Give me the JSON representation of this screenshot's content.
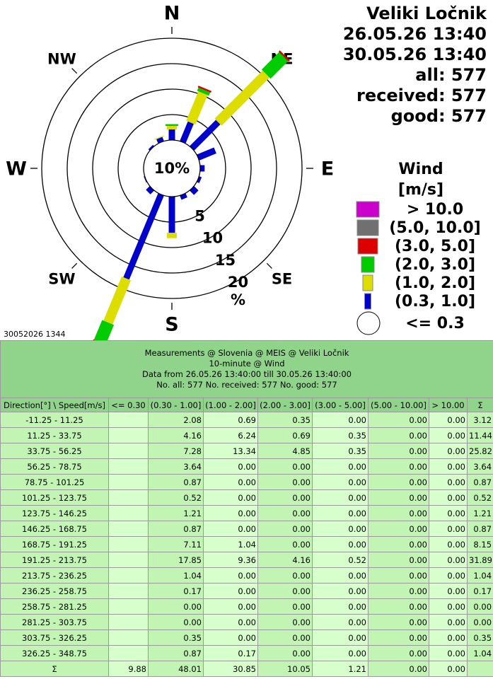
{
  "chart_data": {
    "type": "windrose",
    "station": "Veliki Ločnik",
    "date_from": "26.05.26 13:40",
    "date_to": "30.05.26 13:40",
    "count_all": "all: 577",
    "count_received": "received: 577",
    "count_good": "good: 577",
    "legend_title": "Wind",
    "legend_unit": "[m/s]",
    "direction_labels": [
      "N",
      "NE",
      "E",
      "SE",
      "S",
      "SW",
      "W",
      "NW"
    ],
    "rlim": [
      0,
      20
    ],
    "rticks": [
      5,
      10,
      15,
      20
    ],
    "r_unit": "%",
    "calm": {
      "name": "<= 0.3",
      "color": "#ffffff",
      "value": 9.88,
      "value_label": "10%"
    },
    "series": [
      {
        "name": "(0.3, 1.0]",
        "color": "#0000cc",
        "values": [
          2.08,
          4.16,
          7.28,
          3.64,
          0.87,
          0.52,
          1.21,
          0.87,
          7.11,
          17.85,
          1.04,
          0.17,
          0.0,
          0.0,
          0.35,
          0.87
        ]
      },
      {
        "name": "(1.0, 2.0]",
        "color": "#dddd00",
        "values": [
          0.69,
          6.24,
          13.34,
          0.0,
          0.0,
          0.0,
          0.0,
          0.0,
          1.04,
          9.36,
          0.0,
          0.0,
          0.0,
          0.0,
          0.0,
          0.17
        ]
      },
      {
        "name": "(2.0, 3.0]",
        "color": "#00cc00",
        "values": [
          0.35,
          0.69,
          4.85,
          0.0,
          0.0,
          0.0,
          0.0,
          0.0,
          0.0,
          4.16,
          0.0,
          0.0,
          0.0,
          0.0,
          0.0,
          0.0
        ]
      },
      {
        "name": "(3.0, 5.0]",
        "color": "#dd0000",
        "values": [
          0.0,
          0.35,
          0.35,
          0.0,
          0.0,
          0.0,
          0.0,
          0.0,
          0.0,
          0.52,
          0.0,
          0.0,
          0.0,
          0.0,
          0.0,
          0.0
        ]
      },
      {
        "name": "(5.0, 10.0]",
        "color": "#707070",
        "values": [
          0.0,
          0.0,
          0.0,
          0.0,
          0.0,
          0.0,
          0.0,
          0.0,
          0.0,
          0.0,
          0.0,
          0.0,
          0.0,
          0.0,
          0.0,
          0.0
        ]
      },
      {
        "name": "> 10.0",
        "color": "#cc00cc",
        "values": [
          0.0,
          0.0,
          0.0,
          0.0,
          0.0,
          0.0,
          0.0,
          0.0,
          0.0,
          0.0,
          0.0,
          0.0,
          0.0,
          0.0,
          0.0,
          0.0
        ]
      }
    ],
    "footnote": "30052026 1344"
  },
  "table": {
    "header_lines": [
      "Measurements @ Slovenia @ MEIS @ Veliki Ločnik",
      "10-minute @ Wind",
      "Data from 26.05.26 13:40:00 till 30.05.26 13:40:00",
      "No. all: 577   No. received: 577   No. good: 577"
    ],
    "columns": [
      "Direction[°] \\ Speed[m/s]",
      "<= 0.30",
      "(0.30 - 1.00]",
      "(1.00 - 2.00]",
      "(2.00 - 3.00]",
      "(3.00 - 5.00]",
      "(5.00 - 10.00]",
      "> 10.00",
      "Σ"
    ],
    "rows": [
      [
        "-11.25 - 11.25",
        null,
        "2.08",
        "0.69",
        "0.35",
        "0.00",
        "0.00",
        "0.00",
        "3.12"
      ],
      [
        "11.25 - 33.75",
        null,
        "4.16",
        "6.24",
        "0.69",
        "0.35",
        "0.00",
        "0.00",
        "11.44"
      ],
      [
        "33.75 - 56.25",
        null,
        "7.28",
        "13.34",
        "4.85",
        "0.35",
        "0.00",
        "0.00",
        "25.82"
      ],
      [
        "56.25 - 78.75",
        null,
        "3.64",
        "0.00",
        "0.00",
        "0.00",
        "0.00",
        "0.00",
        "3.64"
      ],
      [
        "78.75 - 101.25",
        null,
        "0.87",
        "0.00",
        "0.00",
        "0.00",
        "0.00",
        "0.00",
        "0.87"
      ],
      [
        "101.25 - 123.75",
        null,
        "0.52",
        "0.00",
        "0.00",
        "0.00",
        "0.00",
        "0.00",
        "0.52"
      ],
      [
        "123.75 - 146.25",
        null,
        "1.21",
        "0.00",
        "0.00",
        "0.00",
        "0.00",
        "0.00",
        "1.21"
      ],
      [
        "146.25 - 168.75",
        null,
        "0.87",
        "0.00",
        "0.00",
        "0.00",
        "0.00",
        "0.00",
        "0.87"
      ],
      [
        "168.75 - 191.25",
        null,
        "7.11",
        "1.04",
        "0.00",
        "0.00",
        "0.00",
        "0.00",
        "8.15"
      ],
      [
        "191.25 - 213.75",
        null,
        "17.85",
        "9.36",
        "4.16",
        "0.52",
        "0.00",
        "0.00",
        "31.89"
      ],
      [
        "213.75 - 236.25",
        null,
        "1.04",
        "0.00",
        "0.00",
        "0.00",
        "0.00",
        "0.00",
        "1.04"
      ],
      [
        "236.25 - 258.75",
        null,
        "0.17",
        "0.00",
        "0.00",
        "0.00",
        "0.00",
        "0.00",
        "0.17"
      ],
      [
        "258.75 - 281.25",
        null,
        "0.00",
        "0.00",
        "0.00",
        "0.00",
        "0.00",
        "0.00",
        "0.00"
      ],
      [
        "281.25 - 303.75",
        null,
        "0.00",
        "0.00",
        "0.00",
        "0.00",
        "0.00",
        "0.00",
        "0.00"
      ],
      [
        "303.75 - 326.25",
        null,
        "0.35",
        "0.00",
        "0.00",
        "0.00",
        "0.00",
        "0.00",
        "0.35"
      ],
      [
        "326.25 - 348.75",
        null,
        "0.87",
        "0.17",
        "0.00",
        "0.00",
        "0.00",
        "0.00",
        "1.04"
      ],
      [
        "Σ",
        "9.88",
        "48.01",
        "30.85",
        "10.05",
        "1.21",
        "0.00",
        "0.00",
        null
      ]
    ]
  }
}
